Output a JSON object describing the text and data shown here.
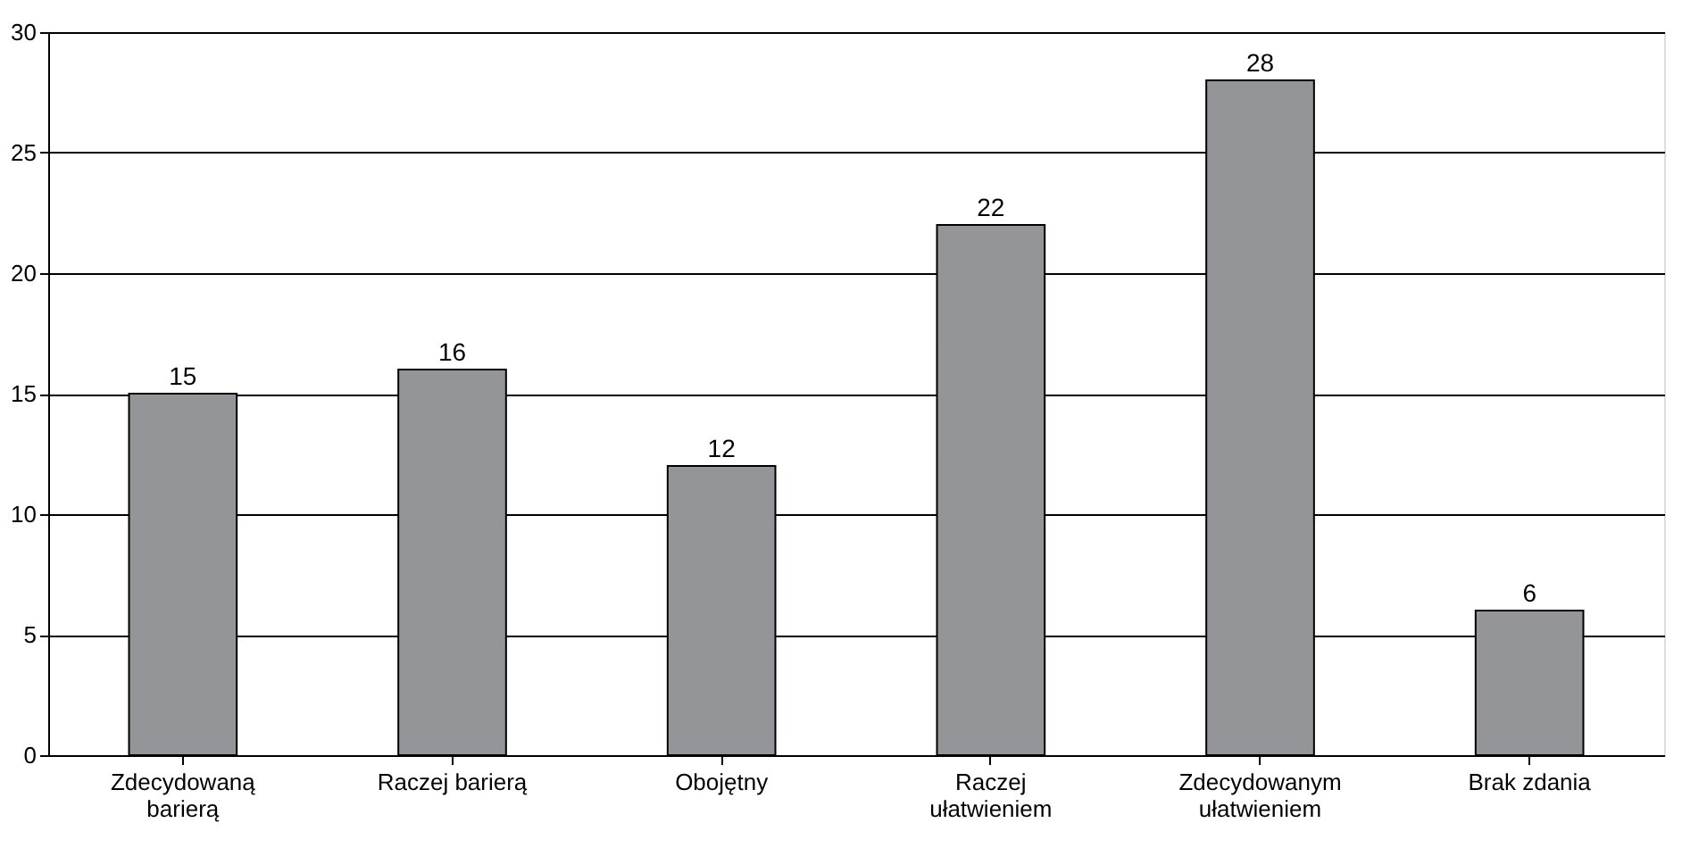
{
  "chart_data": {
    "type": "bar",
    "categories": [
      "Zdecydowaną barierą",
      "Raczej barierą",
      "Obojętny",
      "Raczej ułatwieniem",
      "Zdecydowanym ułatwieniem",
      "Brak zdania"
    ],
    "values": [
      15,
      16,
      12,
      22,
      28,
      6
    ],
    "color": "#939598",
    "ylim": [
      0,
      30
    ],
    "yticks": [
      0,
      5,
      10,
      15,
      20,
      25,
      30
    ],
    "grid": "y",
    "data_labels": true
  }
}
